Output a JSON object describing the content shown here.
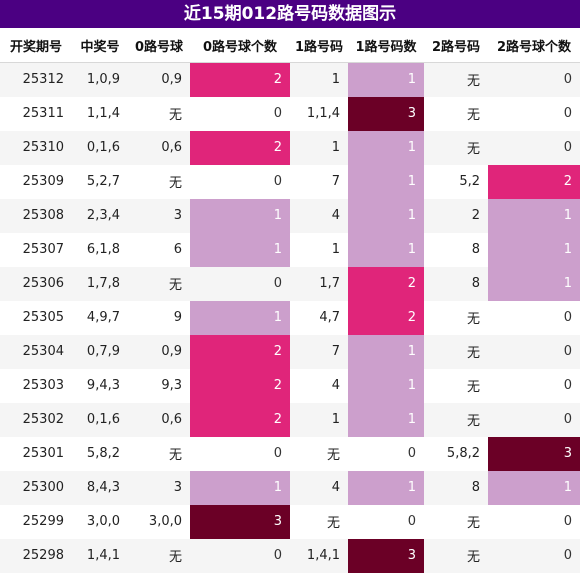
{
  "chart_data": {
    "type": "table",
    "title": "近15期012路号码数据图示",
    "columns": [
      "开奖期号",
      "中奖号",
      "0路号球",
      "0路号球个数",
      "1路号码",
      "1路号码数",
      "2路号码",
      "2路号球个数"
    ],
    "rows": [
      [
        "25312",
        "1,0,9",
        "0,9",
        2,
        "1",
        1,
        "无",
        0
      ],
      [
        "25311",
        "1,1,4",
        "无",
        0,
        "1,1,4",
        3,
        "无",
        0
      ],
      [
        "25310",
        "0,1,6",
        "0,6",
        2,
        "1",
        1,
        "无",
        0
      ],
      [
        "25309",
        "5,2,7",
        "无",
        0,
        "7",
        1,
        "5,2",
        2
      ],
      [
        "25308",
        "2,3,4",
        "3",
        1,
        "4",
        1,
        "2",
        1
      ],
      [
        "25307",
        "6,1,8",
        "6",
        1,
        "1",
        1,
        "8",
        1
      ],
      [
        "25306",
        "1,7,8",
        "无",
        0,
        "1,7",
        2,
        "8",
        1
      ],
      [
        "25305",
        "4,9,7",
        "9",
        1,
        "4,7",
        2,
        "无",
        0
      ],
      [
        "25304",
        "0,7,9",
        "0,9",
        2,
        "7",
        1,
        "无",
        0
      ],
      [
        "25303",
        "9,4,3",
        "9,3",
        2,
        "4",
        1,
        "无",
        0
      ],
      [
        "25302",
        "0,1,6",
        "0,6",
        2,
        "1",
        1,
        "无",
        0
      ],
      [
        "25301",
        "5,8,2",
        "无",
        0,
        "无",
        0,
        "5,8,2",
        3
      ],
      [
        "25300",
        "8,4,3",
        "3",
        1,
        "4",
        1,
        "8",
        1
      ],
      [
        "25299",
        "3,0,0",
        "3,0,0",
        3,
        "无",
        0,
        "无",
        0
      ],
      [
        "25298",
        "1,4,1",
        "无",
        0,
        "1,4,1",
        3,
        "无",
        0
      ]
    ],
    "heat_colors": {
      "1": "#cc9fcc",
      "2": "#e0257a",
      "3": "#6b0026"
    }
  }
}
